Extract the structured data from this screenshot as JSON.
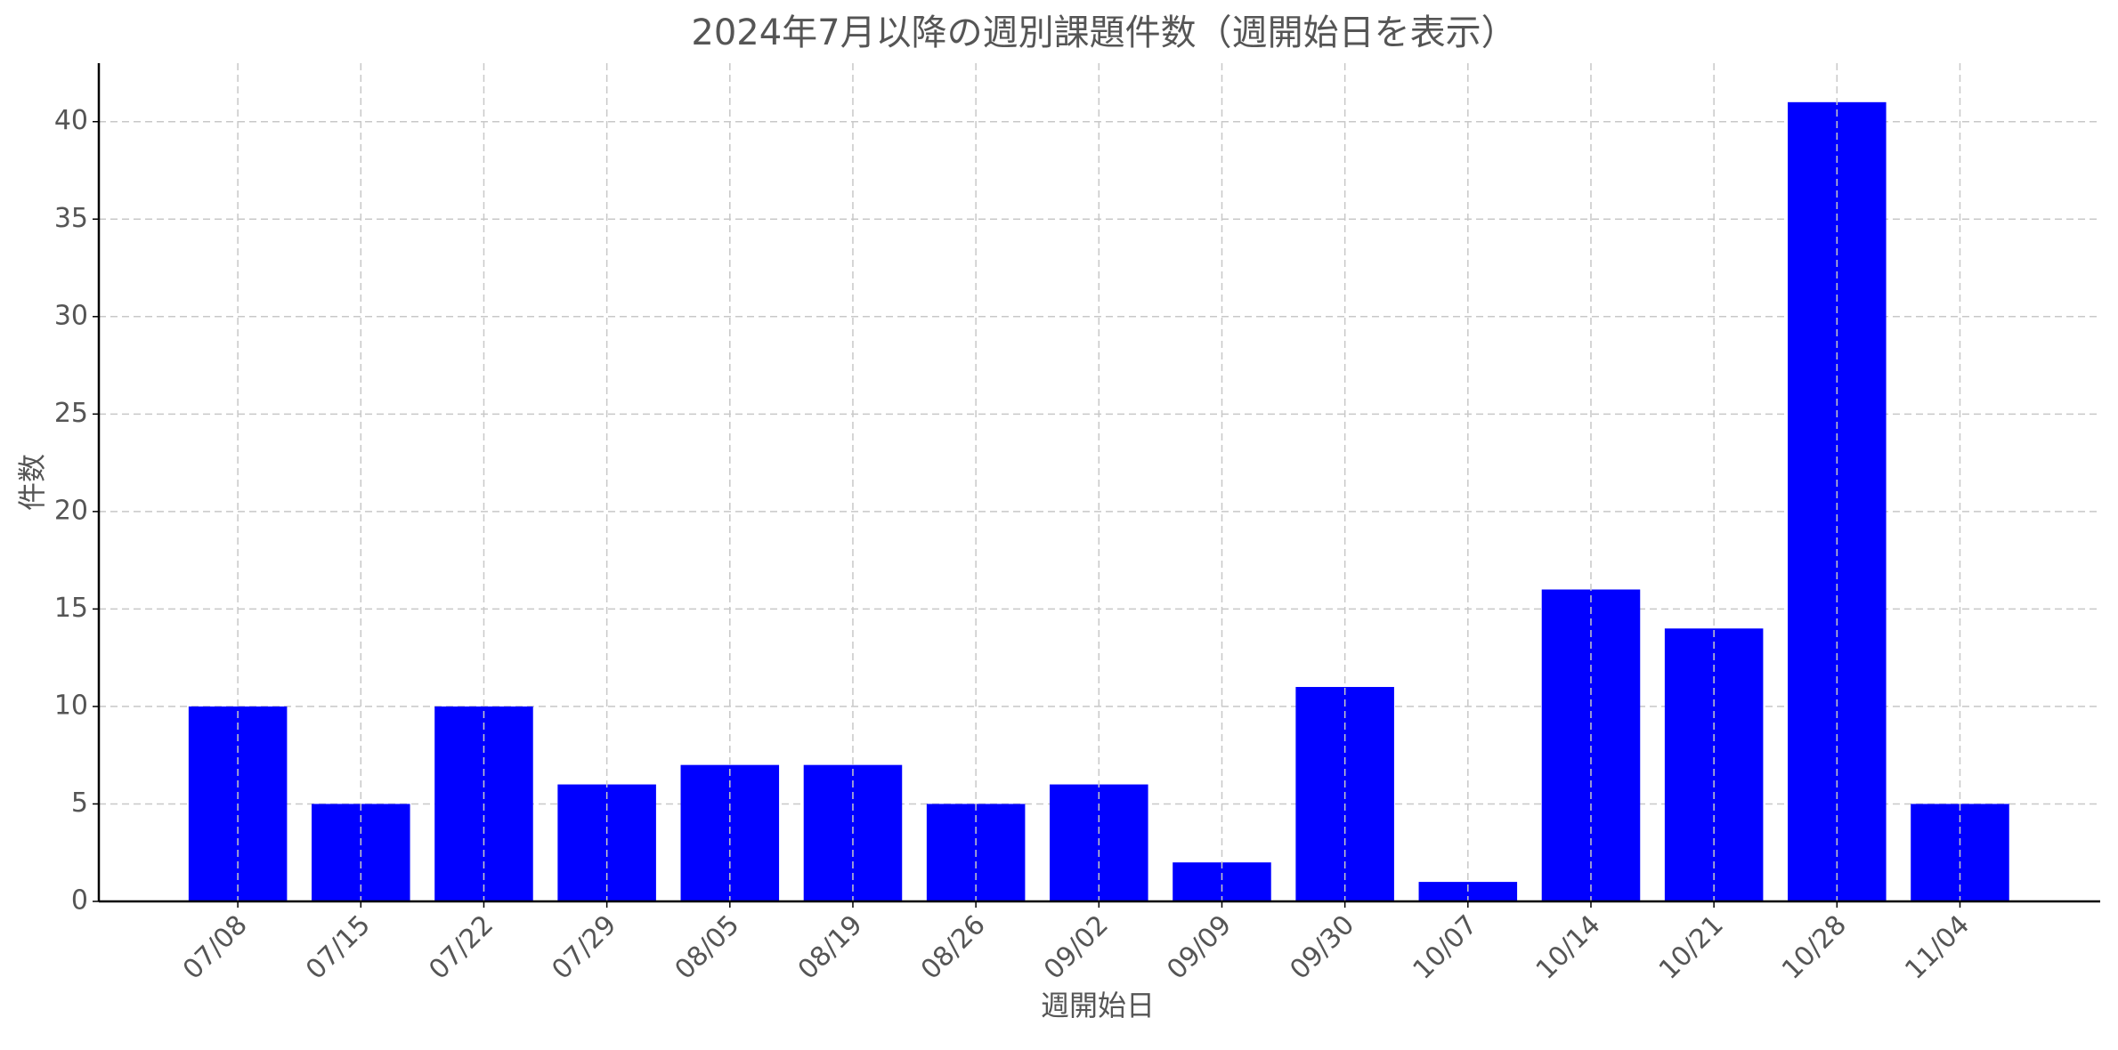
{
  "chart_data": {
    "type": "bar",
    "title": "2024年7月以降の週別課題件数（週開始日を表示）",
    "x_label": "週開始日",
    "y_label": "件数",
    "categories": [
      "07/08",
      "07/15",
      "07/22",
      "07/29",
      "08/05",
      "08/19",
      "08/26",
      "09/02",
      "09/09",
      "09/30",
      "10/07",
      "10/14",
      "10/21",
      "10/28",
      "11/04"
    ],
    "values": [
      10,
      5,
      10,
      6,
      7,
      7,
      5,
      6,
      2,
      11,
      1,
      16,
      14,
      41,
      5
    ],
    "color": "#0000ff",
    "ylim": [
      0,
      43
    ],
    "yticks": [
      0,
      5,
      10,
      15,
      20,
      25,
      30,
      35,
      40
    ],
    "grid": true
  }
}
